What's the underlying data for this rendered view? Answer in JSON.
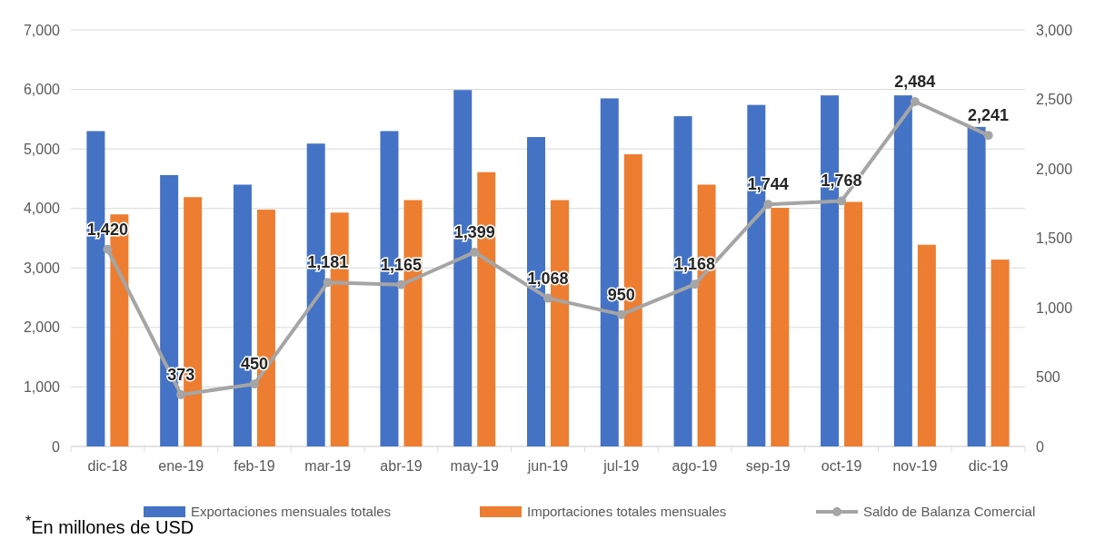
{
  "chart_data": {
    "type": "bar",
    "categories": [
      "dic-18",
      "ene-19",
      "feb-19",
      "mar-19",
      "abr-19",
      "may-19",
      "jun-19",
      "jul-19",
      "ago-19",
      "sep-19",
      "oct-19",
      "nov-19",
      "dic-19"
    ],
    "series": [
      {
        "name": "Exportaciones mensuales totales",
        "color": "#4472c4",
        "values": [
          5300,
          4560,
          4400,
          5090,
          5300,
          5990,
          5200,
          5850,
          5550,
          5740,
          5900,
          5900,
          5370
        ]
      },
      {
        "name": "Importaciones totales mensuales",
        "color": "#ed7d31",
        "values": [
          3900,
          4190,
          3980,
          3930,
          4140,
          4610,
          4140,
          4910,
          4400,
          4010,
          4110,
          3390,
          3140
        ]
      },
      {
        "name": "Saldo de Balanza Comercial",
        "type": "line",
        "axis": "y2",
        "color": "#a5a5a5",
        "marker": "circle",
        "value_labels": [
          "1,420",
          "373",
          "450",
          "1,181",
          "1,165",
          "1,399",
          "1,068",
          "950",
          "1,168",
          "1,744",
          "1,768",
          "2,484",
          "2,241"
        ],
        "values": [
          1420,
          373,
          450,
          1181,
          1165,
          1399,
          1068,
          950,
          1168,
          1744,
          1768,
          2484,
          2241
        ]
      }
    ],
    "ylim": [
      0,
      7000
    ],
    "yticks": [
      {
        "value": 0,
        "label": "0"
      },
      {
        "value": 1000,
        "label": "1,000"
      },
      {
        "value": 2000,
        "label": "2,000"
      },
      {
        "value": 3000,
        "label": "3,000"
      },
      {
        "value": 4000,
        "label": "4,000"
      },
      {
        "value": 5000,
        "label": "5,000"
      },
      {
        "value": 6000,
        "label": "6,000"
      },
      {
        "value": 7000,
        "label": "7,000"
      }
    ],
    "y2lim": [
      0,
      3000
    ],
    "y2ticks": [
      {
        "value": 0,
        "label": "0"
      },
      {
        "value": 500,
        "label": "500"
      },
      {
        "value": 1000,
        "label": "1,000"
      },
      {
        "value": 1500,
        "label": "1,500"
      },
      {
        "value": 2000,
        "label": "2,000"
      },
      {
        "value": 2500,
        "label": "2,500"
      },
      {
        "value": 3000,
        "label": "3,000"
      }
    ],
    "grid": "y",
    "legend": "bottom",
    "annotations": [
      "$^{*}$En millones de USD"
    ]
  }
}
